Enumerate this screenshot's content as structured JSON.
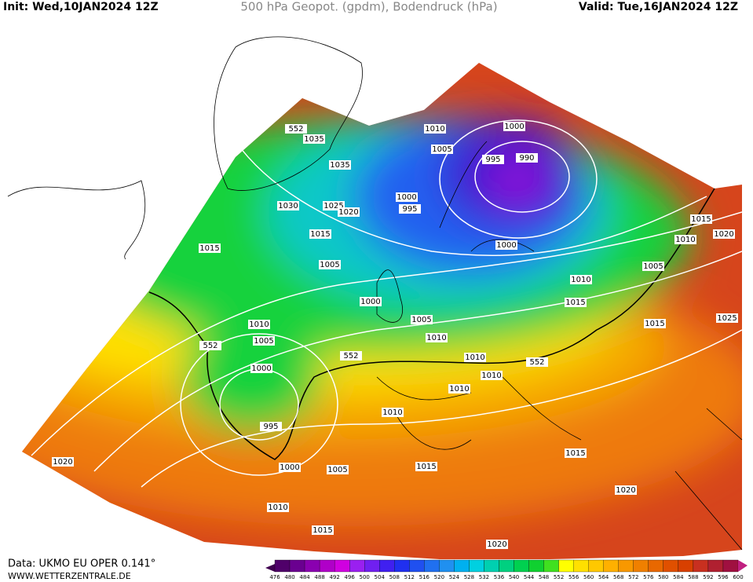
{
  "header": {
    "init": "Init: Wed,10JAN2024  12Z",
    "title": "500 hPa Geopot. (gpdm), Bodendruck (hPa)",
    "valid": "Valid: Tue,16JAN2024  12Z"
  },
  "footer": {
    "data": "Data: UKMO EU OPER 0.141°",
    "site": "WWW.WETTERZENTRALE.DE"
  },
  "colorbar": {
    "labels": [
      476,
      480,
      484,
      488,
      492,
      496,
      500,
      504,
      508,
      512,
      516,
      520,
      524,
      528,
      532,
      536,
      540,
      544,
      548,
      552,
      556,
      560,
      564,
      568,
      572,
      576,
      580,
      584,
      588,
      592,
      596,
      600
    ]
  },
  "contour_labels": [
    552,
    1035,
    1035,
    1030,
    1025,
    1020,
    1015,
    1015,
    1010,
    1005,
    1000,
    995,
    990,
    1000,
    995,
    1005,
    1000,
    1015,
    1010,
    1020,
    1005,
    1010,
    1015,
    1000,
    1005,
    1010,
    1015,
    1025,
    1010,
    1005,
    552,
    552,
    1010,
    552,
    1010,
    1000,
    1010,
    1010,
    995,
    1000,
    1005,
    1015,
    1015,
    1020,
    1010,
    1020,
    1015,
    1020
  ]
}
